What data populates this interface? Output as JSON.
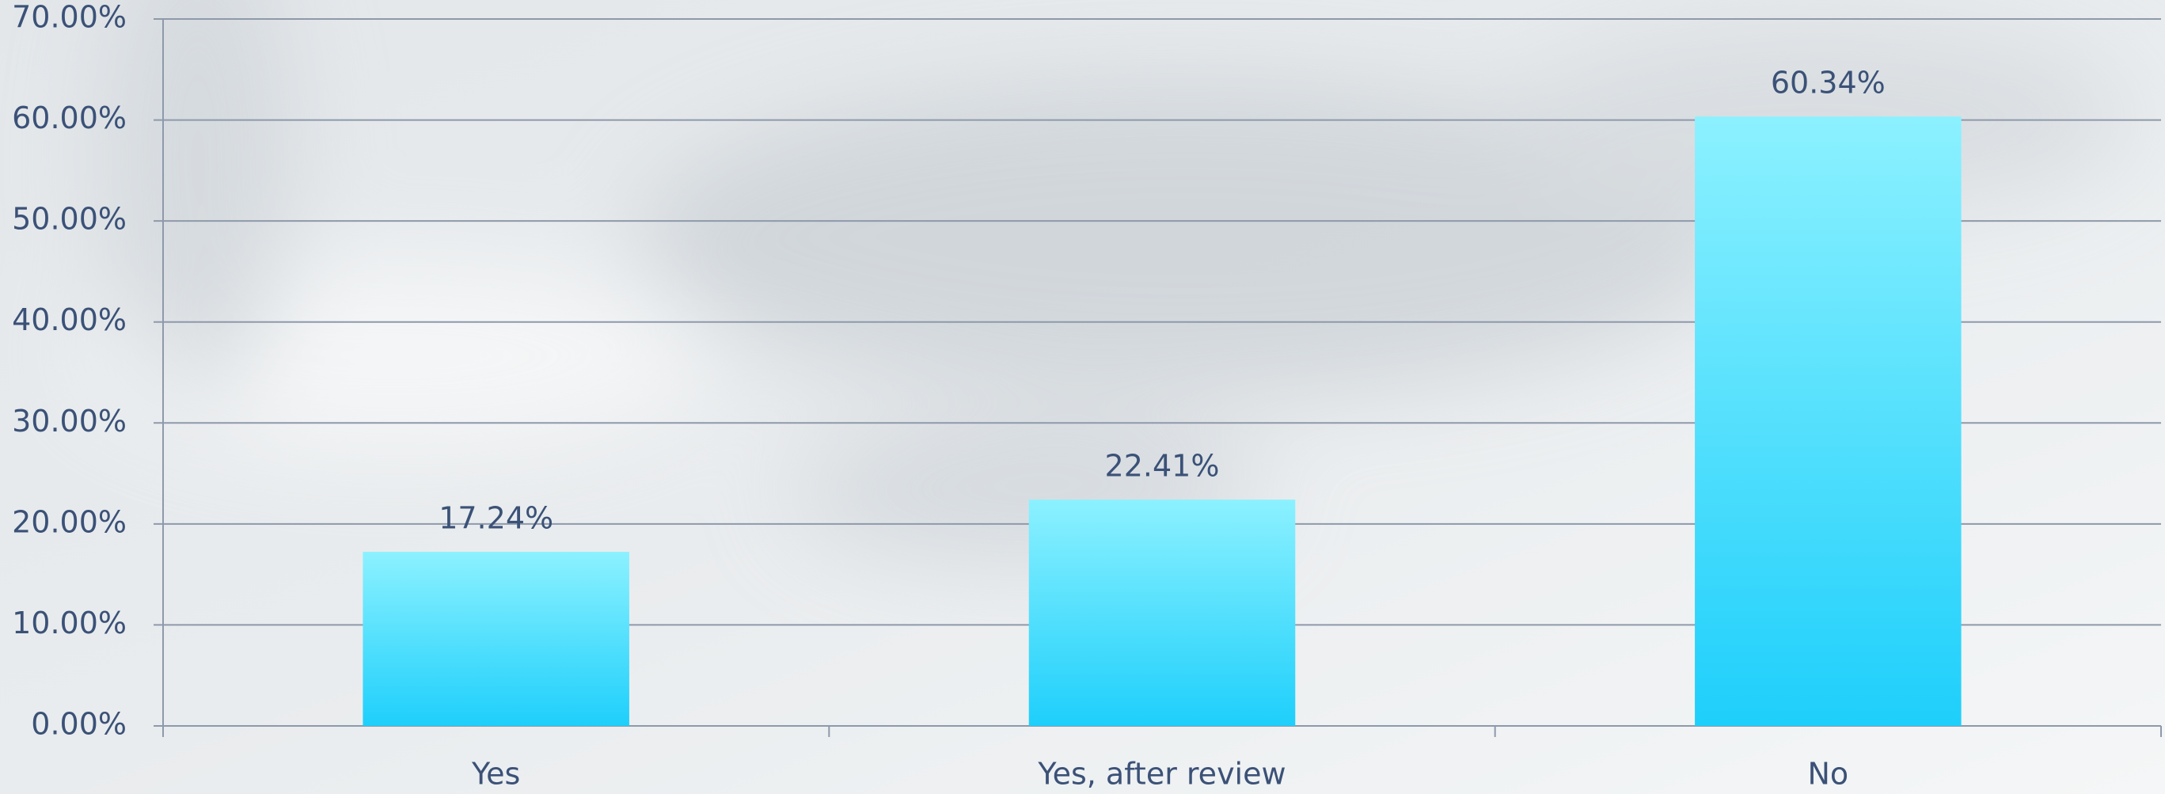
{
  "chart_data": {
    "type": "bar",
    "categories": [
      "Yes",
      "Yes, after review",
      "No"
    ],
    "values": [
      17.24,
      22.41,
      60.34
    ],
    "value_labels": [
      "17.24%",
      "22.41%",
      "60.34%"
    ],
    "color_top": "#8cf1ff",
    "color_bottom": "#1ecffb",
    "ylim": [
      0,
      70
    ],
    "yticks": [
      {
        "value": 0,
        "label": "0.00%"
      },
      {
        "value": 10,
        "label": "10.00%"
      },
      {
        "value": 20,
        "label": "20.00%"
      },
      {
        "value": 30,
        "label": "30.00%"
      },
      {
        "value": 40,
        "label": "40.00%"
      },
      {
        "value": 50,
        "label": "50.00%"
      },
      {
        "value": 60,
        "label": "60.00%"
      },
      {
        "value": 70,
        "label": "70.00%"
      }
    ],
    "grid": true
  }
}
